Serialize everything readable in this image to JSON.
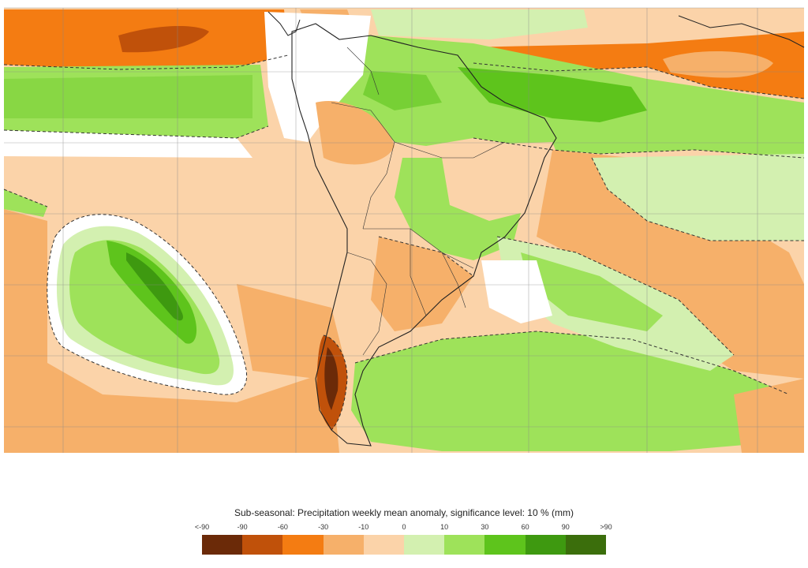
{
  "legend": {
    "title": "Sub-seasonal: Precipitation weekly mean anomaly, significance level: 10 % (mm)",
    "ticks": [
      "<-90",
      "-90",
      "-60",
      "-30",
      "-10",
      "0",
      "10",
      "30",
      "60",
      "90",
      ">90"
    ],
    "colors": [
      "#6b2a08",
      "#c0510a",
      "#f47c12",
      "#f6b06a",
      "#fbd3a9",
      "#d3f0b0",
      "#9ee25a",
      "#5ec41c",
      "#3e9910",
      "#3b6e0c"
    ]
  },
  "map": {
    "region": "South America and adjacent oceans",
    "graticule": "on",
    "significance_contour": "dashed",
    "colors": {
      "land_border": "#222222",
      "grid": "#888888"
    }
  }
}
